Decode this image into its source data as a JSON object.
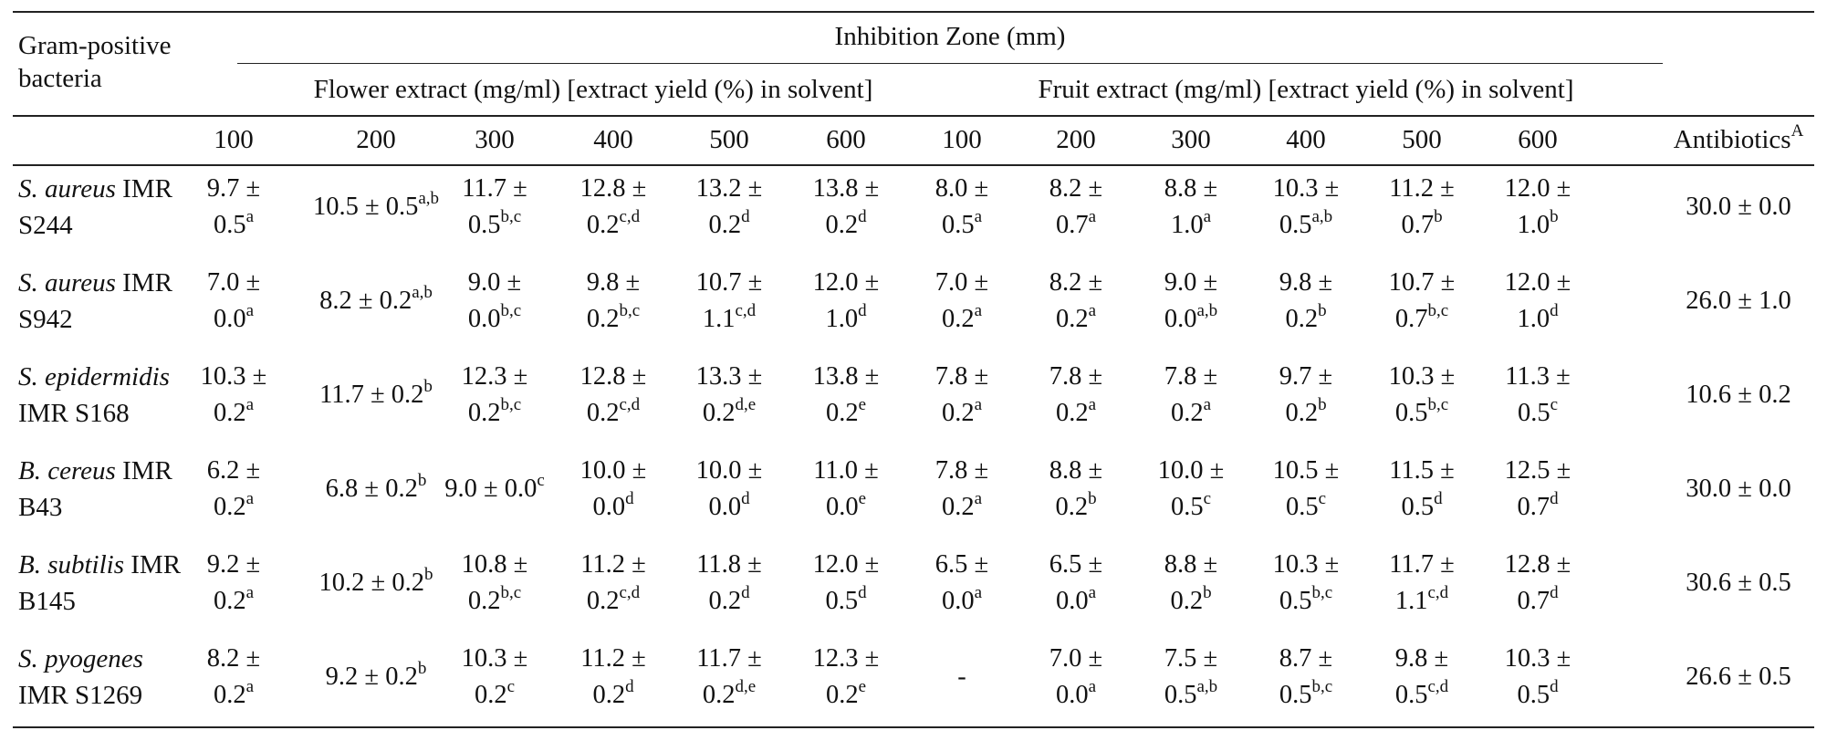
{
  "table": {
    "row_header": [
      "Gram-positive",
      "bacteria"
    ],
    "group_header": "Inhibition Zone (mm)",
    "flower_header": "Flower extract (mg/ml) [extract yield (%) in solvent]",
    "fruit_header": "Fruit extract (mg/ml) [extract yield (%) in solvent]",
    "concentrations": [
      "100",
      "200",
      "300",
      "400",
      "500",
      "600",
      "100",
      "200",
      "300",
      "400",
      "500",
      "600"
    ],
    "antibiotics_label": "Antibiotics",
    "antibiotics_sup": "A",
    "rows": [
      {
        "species": "S. aureus",
        "strain_a": "IMR",
        "strain_b": "S244",
        "cells": [
          {
            "l1": "9.7 ±",
            "l2": "0.5",
            "s": "a"
          },
          {
            "one": "10.5 ± 0.5",
            "s": "a,b"
          },
          {
            "l1": "11.7 ±",
            "l2": "0.5",
            "s": "b,c"
          },
          {
            "l1": "12.8 ±",
            "l2": "0.2",
            "s": "c,d"
          },
          {
            "l1": "13.2 ±",
            "l2": "0.2",
            "s": "d"
          },
          {
            "l1": "13.8 ±",
            "l2": "0.2",
            "s": "d"
          },
          {
            "l1": "8.0 ±",
            "l2": "0.5",
            "s": "a"
          },
          {
            "l1": "8.2 ±",
            "l2": "0.7",
            "s": "a"
          },
          {
            "l1": "8.8 ±",
            "l2": "1.0",
            "s": "a"
          },
          {
            "l1": "10.3 ±",
            "l2": "0.5",
            "s": "a,b"
          },
          {
            "l1": "11.2 ±",
            "l2": "0.7",
            "s": "b"
          },
          {
            "l1": "12.0 ±",
            "l2": "1.0",
            "s": "b"
          }
        ],
        "antibiotic": "30.0 ± 0.0"
      },
      {
        "species": "S. aureus",
        "strain_a": "IMR",
        "strain_b": "S942",
        "cells": [
          {
            "l1": "7.0 ±",
            "l2": "0.0",
            "s": "a"
          },
          {
            "one": "8.2 ± 0.2",
            "s": "a,b"
          },
          {
            "l1": "9.0 ±",
            "l2": "0.0",
            "s": "b,c"
          },
          {
            "l1": "9.8 ±",
            "l2": "0.2",
            "s": "b,c"
          },
          {
            "l1": "10.7 ±",
            "l2": "1.1",
            "s": "c,d"
          },
          {
            "l1": "12.0 ±",
            "l2": "1.0",
            "s": "d"
          },
          {
            "l1": "7.0 ±",
            "l2": "0.2",
            "s": "a"
          },
          {
            "l1": "8.2 ±",
            "l2": "0.2",
            "s": "a"
          },
          {
            "l1": "9.0 ±",
            "l2": "0.0",
            "s": "a,b"
          },
          {
            "l1": "9.8 ±",
            "l2": "0.2",
            "s": "b"
          },
          {
            "l1": "10.7 ±",
            "l2": "0.7",
            "s": "b,c"
          },
          {
            "l1": "12.0 ±",
            "l2": "1.0",
            "s": "d"
          }
        ],
        "antibiotic": "26.0 ± 1.0"
      },
      {
        "species": "S. epidermidis",
        "strain_a": "",
        "strain_b": "IMR S168",
        "cells": [
          {
            "l1": "10.3 ±",
            "l2": "0.2",
            "s": "a"
          },
          {
            "one": "11.7 ± 0.2",
            "s": "b"
          },
          {
            "l1": "12.3 ±",
            "l2": "0.2",
            "s": "b,c"
          },
          {
            "l1": "12.8 ±",
            "l2": "0.2",
            "s": "c,d"
          },
          {
            "l1": "13.3 ±",
            "l2": "0.2",
            "s": "d,e"
          },
          {
            "l1": "13.8 ±",
            "l2": "0.2",
            "s": "e"
          },
          {
            "l1": "7.8 ±",
            "l2": "0.2",
            "s": "a"
          },
          {
            "l1": "7.8 ±",
            "l2": "0.2",
            "s": "a"
          },
          {
            "l1": "7.8 ±",
            "l2": "0.2",
            "s": "a"
          },
          {
            "l1": "9.7 ±",
            "l2": "0.2",
            "s": "b"
          },
          {
            "l1": "10.3 ±",
            "l2": "0.5",
            "s": "b,c"
          },
          {
            "l1": "11.3 ±",
            "l2": "0.5",
            "s": "c"
          }
        ],
        "antibiotic": "10.6 ± 0.2"
      },
      {
        "species": "B. cereus",
        "strain_a": "IMR",
        "strain_b": "B43",
        "cells": [
          {
            "l1": "6.2 ±",
            "l2": "0.2",
            "s": "a"
          },
          {
            "one": "6.8 ± 0.2",
            "s": "b"
          },
          {
            "one": "9.0 ± 0.0",
            "s": "c"
          },
          {
            "l1": "10.0 ±",
            "l2": "0.0",
            "s": "d"
          },
          {
            "l1": "10.0 ±",
            "l2": "0.0",
            "s": "d"
          },
          {
            "l1": "11.0 ±",
            "l2": "0.0",
            "s": "e"
          },
          {
            "l1": "7.8 ±",
            "l2": "0.2",
            "s": "a"
          },
          {
            "l1": "8.8 ±",
            "l2": "0.2",
            "s": "b"
          },
          {
            "l1": "10.0 ±",
            "l2": "0.5",
            "s": "c"
          },
          {
            "l1": "10.5 ±",
            "l2": "0.5",
            "s": "c"
          },
          {
            "l1": "11.5 ±",
            "l2": "0.5",
            "s": "d"
          },
          {
            "l1": "12.5 ±",
            "l2": "0.7",
            "s": "d"
          }
        ],
        "antibiotic": "30.0 ± 0.0"
      },
      {
        "species": "B. subtilis",
        "strain_a": "IMR",
        "strain_b": "B145",
        "cells": [
          {
            "l1": "9.2 ±",
            "l2": "0.2",
            "s": "a"
          },
          {
            "one": "10.2 ± 0.2",
            "s": "b"
          },
          {
            "l1": "10.8 ±",
            "l2": "0.2",
            "s": "b,c"
          },
          {
            "l1": "11.2 ±",
            "l2": "0.2",
            "s": "c,d"
          },
          {
            "l1": "11.8 ±",
            "l2": "0.2",
            "s": "d"
          },
          {
            "l1": "12.0 ±",
            "l2": "0.5",
            "s": "d"
          },
          {
            "l1": "6.5 ±",
            "l2": "0.0",
            "s": "a"
          },
          {
            "l1": "6.5 ±",
            "l2": "0.0",
            "s": "a"
          },
          {
            "l1": "8.8 ±",
            "l2": "0.2",
            "s": "b"
          },
          {
            "l1": "10.3 ±",
            "l2": "0.5",
            "s": "b,c"
          },
          {
            "l1": "11.7 ±",
            "l2": "1.1",
            "s": "c,d"
          },
          {
            "l1": "12.8 ±",
            "l2": "0.7",
            "s": "d"
          }
        ],
        "antibiotic": "30.6 ± 0.5"
      },
      {
        "species": "S. pyogenes",
        "strain_a": "",
        "strain_b": "IMR S1269",
        "cells": [
          {
            "l1": "8.2 ±",
            "l2": "0.2",
            "s": "a"
          },
          {
            "one": "9.2 ± 0.2",
            "s": "b"
          },
          {
            "l1": "10.3 ±",
            "l2": "0.2",
            "s": "c"
          },
          {
            "l1": "11.2 ±",
            "l2": "0.2",
            "s": "d"
          },
          {
            "l1": "11.7 ±",
            "l2": "0.2",
            "s": "d,e"
          },
          {
            "l1": "12.3 ±",
            "l2": "0.2",
            "s": "e"
          },
          {
            "one": "-",
            "s": ""
          },
          {
            "l1": "7.0 ±",
            "l2": "0.0",
            "s": "a"
          },
          {
            "l1": "7.5 ±",
            "l2": "0.5",
            "s": "a,b"
          },
          {
            "l1": "8.7 ±",
            "l2": "0.5",
            "s": "b,c"
          },
          {
            "l1": "9.8 ±",
            "l2": "0.5",
            "s": "c,d"
          },
          {
            "l1": "10.3 ±",
            "l2": "0.5",
            "s": "d"
          }
        ],
        "antibiotic": "26.6 ± 0.5"
      }
    ]
  }
}
